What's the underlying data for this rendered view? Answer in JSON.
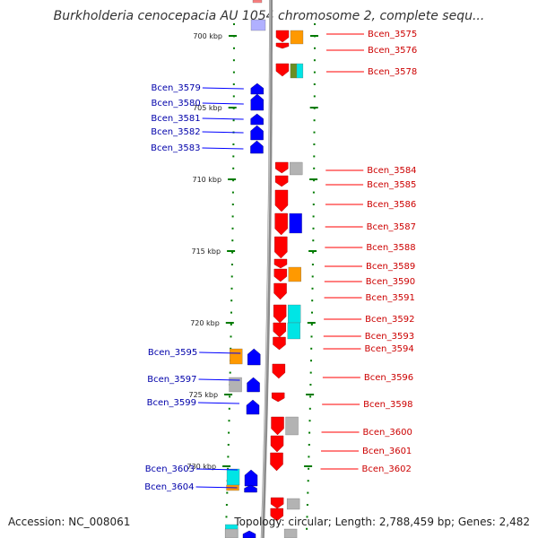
{
  "title": "Burkholderia cenocepacia AU 1054 chromosome 2, complete sequ...",
  "accession_label": "Accession: NC_008061",
  "summary_label": "Topology: circular; Length: 2,788,459 bp; Genes: 2,482",
  "colors": {
    "forward": "#ff0000",
    "reverse": "#0000ff",
    "backbone": "#8c8c8c",
    "ticks": "#007a00",
    "orange": "#ff9900",
    "cyan": "#00e5e5",
    "grey": "#b3b3b3",
    "olive": "#6b8e23",
    "violet": "#b0b0ff",
    "salmon": "#ff8080"
  },
  "scale": {
    "ticks": [
      {
        "kbp": 700,
        "label": "700 kbp"
      },
      {
        "kbp": 705,
        "label": "705 kbp"
      },
      {
        "kbp": 710,
        "label": "710 kbp"
      },
      {
        "kbp": 715,
        "label": "715 kbp"
      },
      {
        "kbp": 720,
        "label": "720 kbp"
      },
      {
        "kbp": 725,
        "label": "725 kbp"
      },
      {
        "kbp": 730,
        "label": "730 kbp"
      }
    ]
  },
  "genes": [
    {
      "label": "Bcen_3575",
      "strand": "+"
    },
    {
      "label": "Bcen_3576",
      "strand": "+"
    },
    {
      "label": "Bcen_3578",
      "strand": "+"
    },
    {
      "label": "Bcen_3579",
      "strand": "-"
    },
    {
      "label": "Bcen_3580",
      "strand": "-"
    },
    {
      "label": "Bcen_3581",
      "strand": "-"
    },
    {
      "label": "Bcen_3582",
      "strand": "-"
    },
    {
      "label": "Bcen_3583",
      "strand": "-"
    },
    {
      "label": "Bcen_3584",
      "strand": "+"
    },
    {
      "label": "Bcen_3585",
      "strand": "+"
    },
    {
      "label": "Bcen_3586",
      "strand": "+"
    },
    {
      "label": "Bcen_3587",
      "strand": "+"
    },
    {
      "label": "Bcen_3588",
      "strand": "+"
    },
    {
      "label": "Bcen_3589",
      "strand": "+"
    },
    {
      "label": "Bcen_3590",
      "strand": "+"
    },
    {
      "label": "Bcen_3591",
      "strand": "+"
    },
    {
      "label": "Bcen_3592",
      "strand": "+"
    },
    {
      "label": "Bcen_3593",
      "strand": "+"
    },
    {
      "label": "Bcen_3594",
      "strand": "+"
    },
    {
      "label": "Bcen_3595",
      "strand": "-"
    },
    {
      "label": "Bcen_3596",
      "strand": "+"
    },
    {
      "label": "Bcen_3597",
      "strand": "-"
    },
    {
      "label": "Bcen_3598",
      "strand": "+"
    },
    {
      "label": "Bcen_3599",
      "strand": "-"
    },
    {
      "label": "Bcen_3600",
      "strand": "+"
    },
    {
      "label": "Bcen_3601",
      "strand": "+"
    },
    {
      "label": "Bcen_3602",
      "strand": "+"
    },
    {
      "label": "Bcen_3603",
      "strand": "-"
    },
    {
      "label": "Bcen_3604",
      "strand": "-"
    }
  ]
}
